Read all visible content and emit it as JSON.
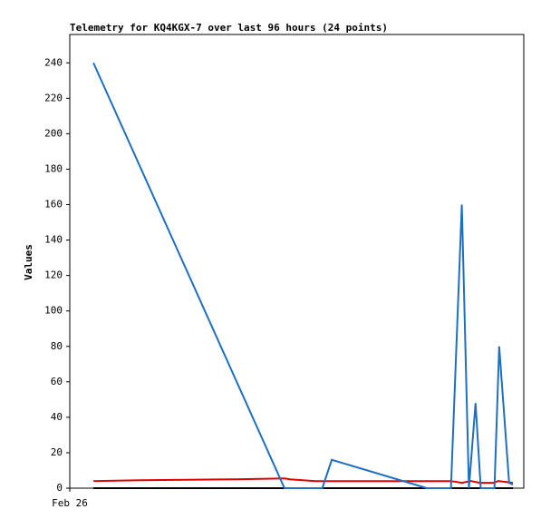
{
  "chart_data": {
    "type": "line",
    "title": "Telemetry for KQ4KGX-7 over last 96 hours (24 points)",
    "y_label": "Values",
    "xlim": [
      0,
      96
    ],
    "xticks": [
      {
        "value": 0,
        "label": "Feb 26"
      }
    ],
    "ylim": [
      0,
      256
    ],
    "yticks": [
      0,
      20,
      40,
      60,
      80,
      100,
      120,
      140,
      160,
      180,
      200,
      220,
      240
    ],
    "series": [
      {
        "color": "#000000",
        "x": [
          5,
          93.7
        ],
        "values": [
          0,
          0
        ]
      },
      {
        "color": "#e00000",
        "x": [
          5,
          15,
          35,
          45.5,
          46.5,
          52,
          80.6,
          82.9,
          84.8,
          86.7,
          89.6,
          90.6,
          93.7
        ],
        "values": [
          4,
          4.5,
          5,
          5.5,
          5,
          4,
          4,
          3,
          4,
          3,
          3,
          4,
          3
        ]
      },
      {
        "color": "#1f6fc0",
        "x": [
          5,
          45.4,
          53.4,
          55.4,
          75.5,
          80.6,
          82.9,
          84.4,
          85.8,
          86.9,
          89.8,
          90.8,
          92.9,
          93.7
        ],
        "values": [
          240,
          0,
          0,
          16,
          0,
          0,
          160,
          0,
          48,
          0,
          0,
          80,
          3,
          2
        ]
      }
    ]
  }
}
